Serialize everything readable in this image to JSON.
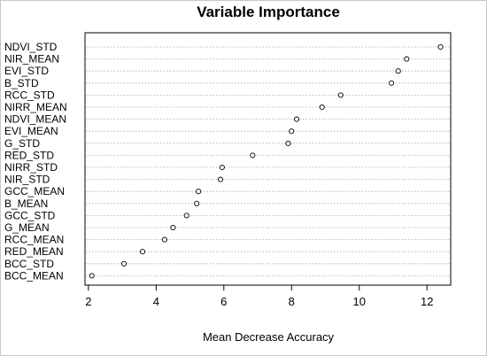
{
  "chart_data": {
    "type": "scatter",
    "title": "Variable Importance",
    "xlabel": "Mean Decrease Accuracy",
    "ylabel": "",
    "xlim": [
      1.9,
      12.7
    ],
    "xticks": [
      2,
      4,
      6,
      8,
      10,
      12
    ],
    "grid": "horizontal dotted",
    "marker": "open-circle",
    "categories": [
      "NDVI_STD",
      "NIR_MEAN",
      "EVI_STD",
      "B_STD",
      "RCC_STD",
      "NIRR_MEAN",
      "NDVI_MEAN",
      "EVI_MEAN",
      "G_STD",
      "RED_STD",
      "NIRR_STD",
      "NIR_STD",
      "GCC_MEAN",
      "B_MEAN",
      "GCC_STD",
      "G_MEAN",
      "RCC_MEAN",
      "RED_MEAN",
      "BCC_STD",
      "BCC_MEAN"
    ],
    "values": [
      12.4,
      11.4,
      11.15,
      10.95,
      9.45,
      8.9,
      8.15,
      8.0,
      7.9,
      6.85,
      5.95,
      5.9,
      5.25,
      5.2,
      4.9,
      4.5,
      4.25,
      3.6,
      3.05,
      2.1
    ]
  }
}
